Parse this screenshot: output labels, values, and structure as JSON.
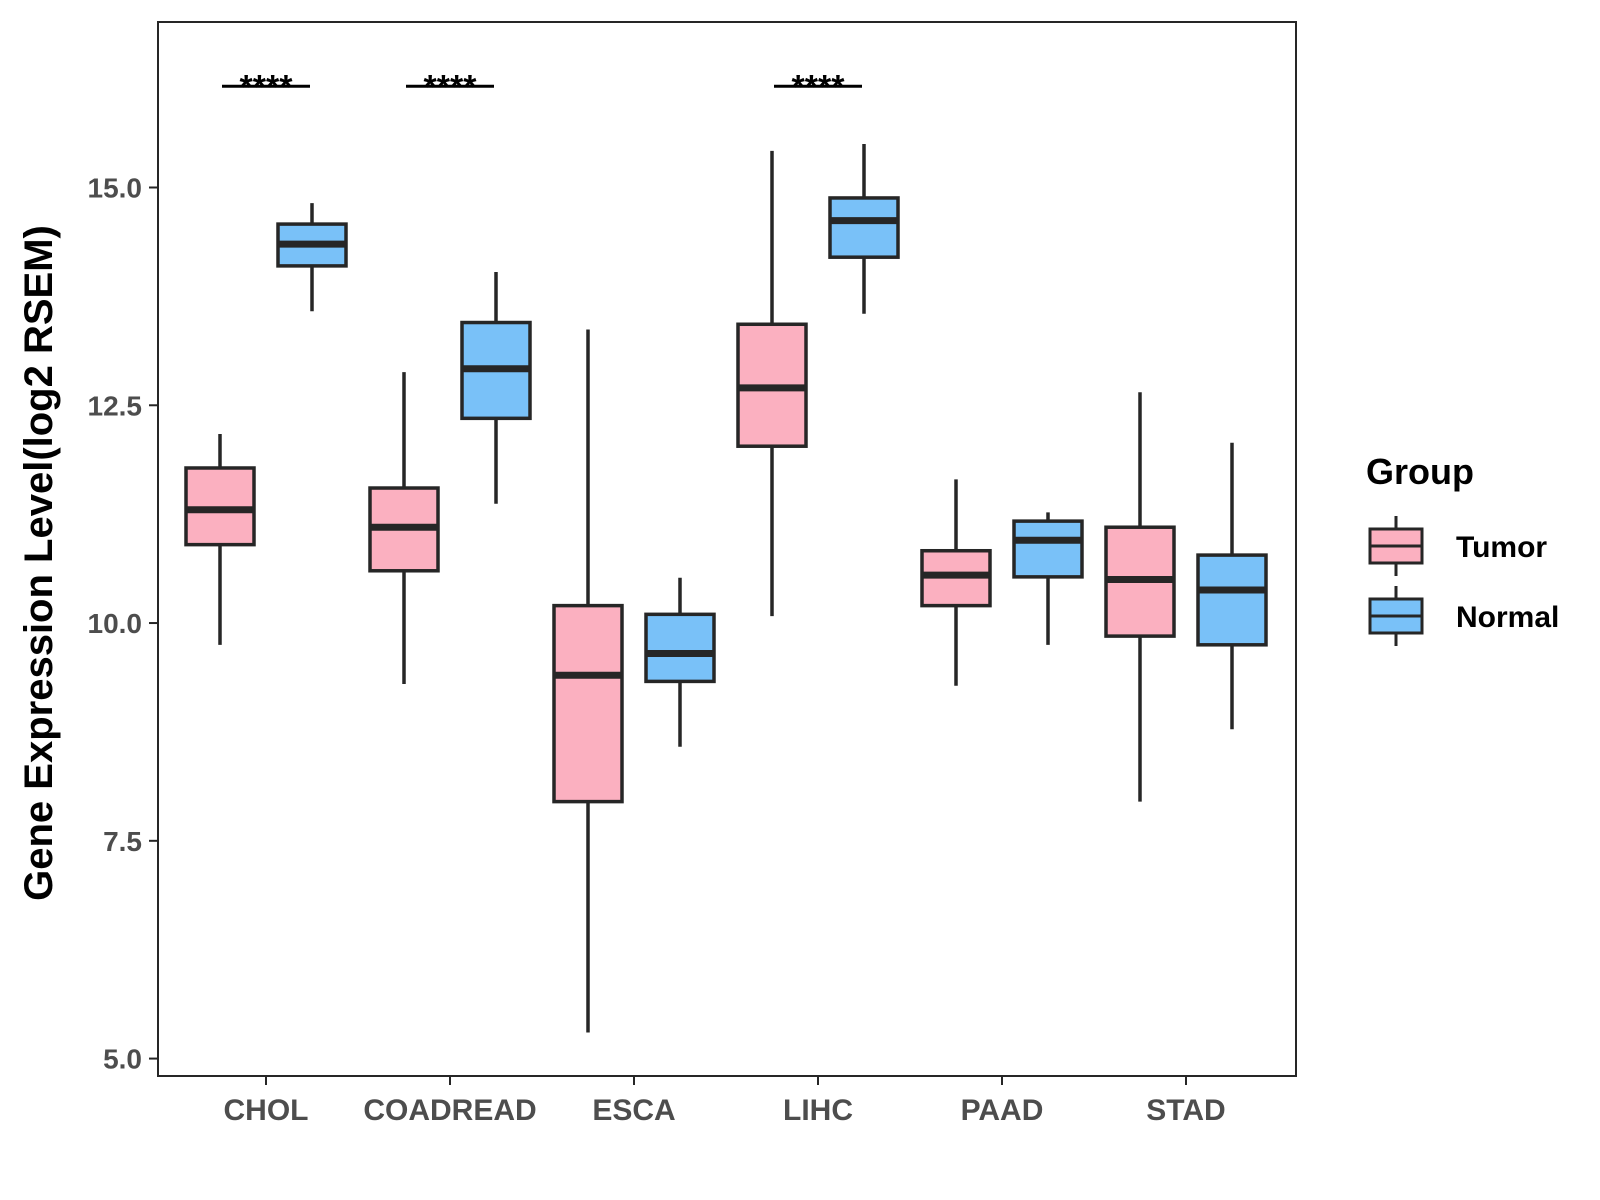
{
  "chart_data": {
    "type": "boxplot",
    "title": "",
    "xlabel": "",
    "ylabel": "Gene Expression Level(log2 RSEM)",
    "ylim": [
      4.8,
      16.9
    ],
    "yticks": [
      5.0,
      7.5,
      10.0,
      12.5,
      15.0
    ],
    "ytick_labels": [
      "5.0",
      "7.5",
      "10.0",
      "12.5",
      "15.0"
    ],
    "grid": false,
    "legend_position": "right",
    "categories": [
      "CHOL",
      "COADREAD",
      "ESCA",
      "LIHC",
      "PAAD",
      "STAD"
    ],
    "legend": {
      "title": "Group",
      "entries": [
        {
          "name": "Tumor",
          "color": "#fbb0c0"
        },
        {
          "name": "Normal",
          "color": "#79c1f8"
        }
      ]
    },
    "series": [
      {
        "name": "Tumor",
        "color": "#fbb0c0",
        "boxes": [
          {
            "category": "CHOL",
            "min": 9.75,
            "q1": 10.9,
            "median": 11.3,
            "q3": 11.78,
            "max": 12.17
          },
          {
            "category": "COADREAD",
            "min": 9.3,
            "q1": 10.6,
            "median": 11.1,
            "q3": 11.55,
            "max": 12.88
          },
          {
            "category": "ESCA",
            "min": 5.3,
            "q1": 7.95,
            "median": 9.4,
            "q3": 10.2,
            "max": 13.37
          },
          {
            "category": "LIHC",
            "min": 10.08,
            "q1": 12.03,
            "median": 12.7,
            "q3": 13.43,
            "max": 15.42
          },
          {
            "category": "PAAD",
            "min": 9.28,
            "q1": 10.2,
            "median": 10.55,
            "q3": 10.83,
            "max": 11.65
          },
          {
            "category": "STAD",
            "min": 7.95,
            "q1": 9.85,
            "median": 10.5,
            "q3": 11.1,
            "max": 12.65
          }
        ]
      },
      {
        "name": "Normal",
        "color": "#79c1f8",
        "boxes": [
          {
            "category": "CHOL",
            "min": 13.58,
            "q1": 14.1,
            "median": 14.35,
            "q3": 14.58,
            "max": 14.82
          },
          {
            "category": "COADREAD",
            "min": 11.37,
            "q1": 12.35,
            "median": 12.92,
            "q3": 13.45,
            "max": 14.03
          },
          {
            "category": "ESCA",
            "min": 8.58,
            "q1": 9.33,
            "median": 9.65,
            "q3": 10.1,
            "max": 10.52
          },
          {
            "category": "LIHC",
            "min": 13.55,
            "q1": 14.2,
            "median": 14.62,
            "q3": 14.88,
            "max": 15.5
          },
          {
            "category": "PAAD",
            "min": 9.75,
            "q1": 10.53,
            "median": 10.95,
            "q3": 11.17,
            "max": 11.27
          },
          {
            "category": "STAD",
            "min": 8.78,
            "q1": 9.75,
            "median": 10.38,
            "q3": 10.78,
            "max": 12.07
          }
        ]
      }
    ],
    "annotations": [
      {
        "category": "CHOL",
        "text": "****"
      },
      {
        "category": "COADREAD",
        "text": "****"
      },
      {
        "category": "LIHC",
        "text": "****"
      }
    ],
    "annotation_y": 16.3
  }
}
